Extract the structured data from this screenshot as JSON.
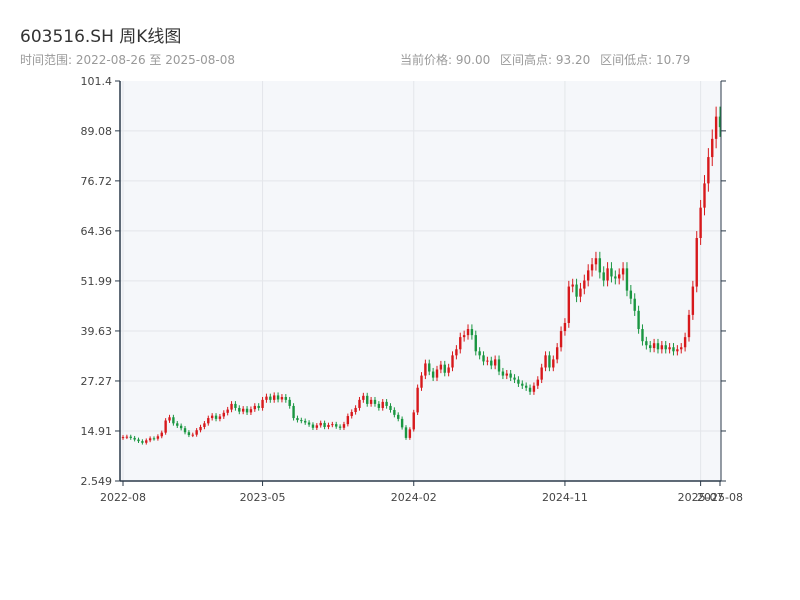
{
  "header": {
    "title": "603516.SH 周K线图",
    "range_label": "时间范围: 2022-08-26 至 2025-08-08",
    "current_price": "当前价格: 90.00",
    "range_high": "区间高点: 93.20",
    "range_low": "区间低点: 10.79"
  },
  "colors": {
    "up": "#d7191c",
    "down": "#1a9641",
    "plot_bg": "#f5f7fa",
    "grid": "#e3e6ea",
    "axis": "#2b3a4a"
  },
  "chart_data": {
    "type": "candlestick",
    "title": "603516.SH 周K线图",
    "ylim": [
      2.549,
      101.4
    ],
    "y_ticks": [
      "2.549",
      "14.91",
      "27.27",
      "39.63",
      "51.99",
      "64.36",
      "76.72",
      "89.08",
      "101.4"
    ],
    "x_ticks": [
      {
        "label": "2022-08",
        "date": "2022-08-26"
      },
      {
        "label": "2023-05",
        "date": "2023-05-05"
      },
      {
        "label": "2024-02",
        "date": "2024-02-02"
      },
      {
        "label": "2024-11",
        "date": "2024-11-01"
      },
      {
        "label": "2025-07",
        "date": "2025-07-04"
      },
      {
        "label": "2025-08",
        "date": "2025-08-08"
      }
    ],
    "grid": true,
    "close_series": [
      [
        "2022-08-26",
        13.4
      ],
      [
        "2022-09-02",
        13.5
      ],
      [
        "2022-09-09",
        13.2
      ],
      [
        "2022-09-16",
        12.8
      ],
      [
        "2022-09-23",
        12.4
      ],
      [
        "2022-09-30",
        12.0
      ],
      [
        "2022-10-07",
        12.6
      ],
      [
        "2022-10-14",
        13.1
      ],
      [
        "2022-10-21",
        13.0
      ],
      [
        "2022-10-28",
        13.6
      ],
      [
        "2022-11-04",
        14.5
      ],
      [
        "2022-11-11",
        17.5
      ],
      [
        "2022-11-18",
        18.3
      ],
      [
        "2022-11-25",
        16.8
      ],
      [
        "2022-12-02",
        16.2
      ],
      [
        "2022-12-09",
        15.6
      ],
      [
        "2022-12-16",
        14.6
      ],
      [
        "2022-12-23",
        13.9
      ],
      [
        "2022-12-30",
        14.0
      ],
      [
        "2023-01-06",
        15.1
      ],
      [
        "2023-01-13",
        15.9
      ],
      [
        "2023-01-20",
        16.8
      ],
      [
        "2023-01-27",
        18.1
      ],
      [
        "2023-02-03",
        18.7
      ],
      [
        "2023-02-10",
        17.9
      ],
      [
        "2023-02-17",
        18.5
      ],
      [
        "2023-02-24",
        19.4
      ],
      [
        "2023-03-03",
        20.2
      ],
      [
        "2023-03-10",
        21.6
      ],
      [
        "2023-03-17",
        20.6
      ],
      [
        "2023-03-24",
        19.7
      ],
      [
        "2023-03-31",
        20.4
      ],
      [
        "2023-04-07",
        19.5
      ],
      [
        "2023-04-14",
        20.3
      ],
      [
        "2023-04-21",
        21.1
      ],
      [
        "2023-04-28",
        20.6
      ],
      [
        "2023-05-05",
        22.6
      ],
      [
        "2023-05-12",
        23.4
      ],
      [
        "2023-05-19",
        22.6
      ],
      [
        "2023-05-26",
        23.7
      ],
      [
        "2023-06-02",
        22.7
      ],
      [
        "2023-06-09",
        23.3
      ],
      [
        "2023-06-16",
        22.6
      ],
      [
        "2023-06-23",
        21.1
      ],
      [
        "2023-06-30",
        18.1
      ],
      [
        "2023-07-07",
        17.6
      ],
      [
        "2023-07-14",
        17.4
      ],
      [
        "2023-07-21",
        17.0
      ],
      [
        "2023-07-28",
        16.5
      ],
      [
        "2023-08-04",
        15.7
      ],
      [
        "2023-08-11",
        16.3
      ],
      [
        "2023-08-18",
        16.9
      ],
      [
        "2023-08-25",
        15.9
      ],
      [
        "2023-09-01",
        16.4
      ],
      [
        "2023-09-08",
        16.6
      ],
      [
        "2023-09-15",
        16.0
      ],
      [
        "2023-09-22",
        15.7
      ],
      [
        "2023-09-29",
        16.6
      ],
      [
        "2023-10-06",
        18.6
      ],
      [
        "2023-10-13",
        19.6
      ],
      [
        "2023-10-20",
        20.6
      ],
      [
        "2023-10-27",
        22.6
      ],
      [
        "2023-11-03",
        23.6
      ],
      [
        "2023-11-10",
        21.6
      ],
      [
        "2023-11-17",
        22.6
      ],
      [
        "2023-11-24",
        21.6
      ],
      [
        "2023-12-01",
        20.6
      ],
      [
        "2023-12-08",
        22.1
      ],
      [
        "2023-12-15",
        21.1
      ],
      [
        "2023-12-22",
        20.1
      ],
      [
        "2023-12-29",
        18.9
      ],
      [
        "2024-01-05",
        17.9
      ],
      [
        "2024-01-12",
        15.8
      ],
      [
        "2024-01-19",
        13.2
      ],
      [
        "2024-01-26",
        15.3
      ],
      [
        "2024-02-02",
        19.5
      ],
      [
        "2024-02-09",
        25.6
      ],
      [
        "2024-02-16",
        28.6
      ],
      [
        "2024-02-23",
        31.6
      ],
      [
        "2024-03-01",
        29.6
      ],
      [
        "2024-03-08",
        28.1
      ],
      [
        "2024-03-15",
        30.1
      ],
      [
        "2024-03-22",
        31.3
      ],
      [
        "2024-03-29",
        29.3
      ],
      [
        "2024-04-05",
        30.6
      ],
      [
        "2024-04-12",
        33.6
      ],
      [
        "2024-04-19",
        35.1
      ],
      [
        "2024-04-26",
        38.1
      ],
      [
        "2024-05-03",
        38.6
      ],
      [
        "2024-05-10",
        40.1
      ],
      [
        "2024-05-17",
        38.6
      ],
      [
        "2024-05-24",
        34.6
      ],
      [
        "2024-05-31",
        33.6
      ],
      [
        "2024-06-07",
        32.1
      ],
      [
        "2024-06-14",
        32.3
      ],
      [
        "2024-06-21",
        31.1
      ],
      [
        "2024-06-28",
        32.6
      ],
      [
        "2024-07-05",
        29.6
      ],
      [
        "2024-07-12",
        28.6
      ],
      [
        "2024-07-19",
        29.1
      ],
      [
        "2024-07-26",
        28.1
      ],
      [
        "2024-08-02",
        27.6
      ],
      [
        "2024-08-09",
        26.6
      ],
      [
        "2024-08-16",
        26.1
      ],
      [
        "2024-08-23",
        25.6
      ],
      [
        "2024-08-30",
        24.6
      ],
      [
        "2024-09-06",
        26.1
      ],
      [
        "2024-09-13",
        27.6
      ],
      [
        "2024-09-20",
        30.6
      ],
      [
        "2024-09-27",
        33.6
      ],
      [
        "2024-10-04",
        30.6
      ],
      [
        "2024-10-11",
        32.6
      ],
      [
        "2024-10-18",
        35.6
      ],
      [
        "2024-10-25",
        39.6
      ],
      [
        "2024-11-01",
        41.6
      ],
      [
        "2024-11-08",
        50.6
      ],
      [
        "2024-11-15",
        51.1
      ],
      [
        "2024-11-22",
        48.1
      ],
      [
        "2024-11-29",
        50.1
      ],
      [
        "2024-12-06",
        52.1
      ],
      [
        "2024-12-13",
        54.6
      ],
      [
        "2024-12-20",
        56.1
      ],
      [
        "2024-12-27",
        57.6
      ],
      [
        "2025-01-03",
        54.1
      ],
      [
        "2025-01-10",
        52.1
      ],
      [
        "2025-01-17",
        55.1
      ],
      [
        "2025-01-24",
        53.1
      ],
      [
        "2025-01-31",
        52.6
      ],
      [
        "2025-02-07",
        53.6
      ],
      [
        "2025-02-14",
        55.1
      ],
      [
        "2025-02-21",
        49.6
      ],
      [
        "2025-02-28",
        47.6
      ],
      [
        "2025-03-07",
        44.6
      ],
      [
        "2025-03-14",
        40.1
      ],
      [
        "2025-03-21",
        37.1
      ],
      [
        "2025-03-28",
        36.1
      ],
      [
        "2025-04-04",
        35.4
      ],
      [
        "2025-04-11",
        36.6
      ],
      [
        "2025-04-18",
        35.1
      ],
      [
        "2025-04-25",
        36.1
      ],
      [
        "2025-05-02",
        35.1
      ],
      [
        "2025-05-09",
        35.6
      ],
      [
        "2025-05-16",
        34.6
      ],
      [
        "2025-05-23",
        35.1
      ],
      [
        "2025-05-30",
        35.6
      ],
      [
        "2025-06-06",
        38.1
      ],
      [
        "2025-06-13",
        43.6
      ],
      [
        "2025-06-20",
        50.6
      ],
      [
        "2025-06-27",
        62.6
      ],
      [
        "2025-07-04",
        70.1
      ],
      [
        "2025-07-11",
        76.1
      ],
      [
        "2025-07-18",
        82.6
      ],
      [
        "2025-07-25",
        87.1
      ],
      [
        "2025-08-01",
        92.6
      ],
      [
        "2025-08-08",
        90.0
      ]
    ]
  }
}
